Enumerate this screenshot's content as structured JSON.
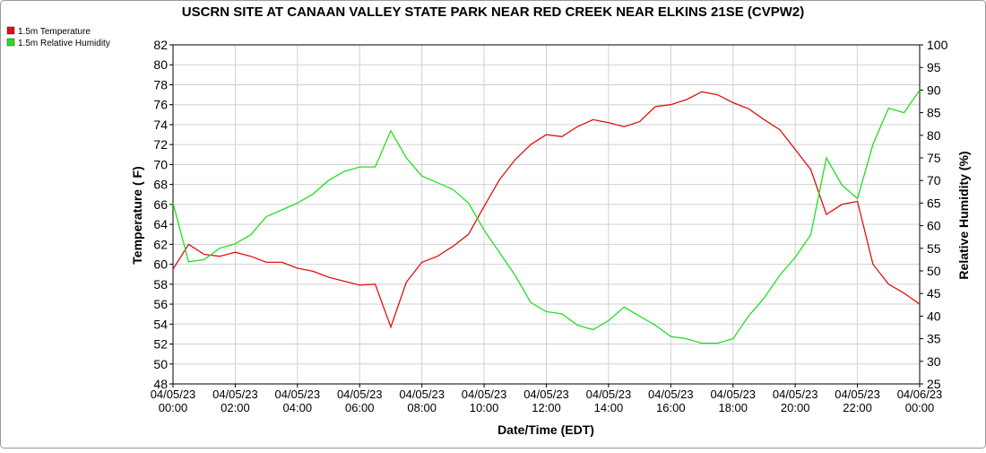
{
  "chart_data": {
    "type": "line",
    "title": "USCRN SITE AT CANAAN VALLEY STATE PARK NEAR RED CREEK NEAR ELKINS 21SE (CVPW2)",
    "xlabel": "Date/Time (EDT)",
    "ylabel": "Temperature ( F)",
    "y2label": "Relative Humidity (%)",
    "x": [
      0,
      0.5,
      1,
      1.5,
      2,
      2.5,
      3,
      3.5,
      4,
      4.5,
      5,
      5.5,
      6,
      6.5,
      7,
      7.5,
      8,
      8.5,
      9,
      9.5,
      10,
      10.5,
      11,
      11.5,
      12,
      12.5,
      13,
      13.5,
      14,
      14.5,
      15,
      15.5,
      16,
      16.5,
      17,
      17.5,
      18,
      18.5,
      19,
      19.5,
      20,
      20.5,
      21,
      21.5,
      22,
      22.5,
      23,
      23.5,
      24
    ],
    "series": [
      {
        "name": "1.5m Temperature",
        "color": "#e01010",
        "axis": "y",
        "values": [
          59.5,
          62.0,
          61.0,
          60.8,
          61.2,
          60.8,
          60.2,
          60.2,
          59.6,
          59.3,
          58.7,
          58.3,
          57.9,
          58.0,
          53.7,
          58.2,
          60.2,
          60.8,
          61.8,
          63.0,
          65.8,
          68.5,
          70.5,
          72.0,
          73.0,
          72.8,
          73.8,
          74.5,
          74.2,
          73.8,
          74.3,
          75.8,
          76.0,
          76.5,
          77.3,
          77.0,
          76.2,
          75.6,
          74.5,
          73.5,
          71.5,
          69.5,
          65.0,
          66.0,
          66.3,
          60.0,
          58.0,
          57.1,
          56.0
        ]
      },
      {
        "name": "1.5m Relative Humidity",
        "color": "#20e020",
        "axis": "y2",
        "values": [
          65,
          52,
          52.5,
          55,
          56,
          58,
          62,
          63.5,
          65,
          67,
          70,
          72,
          73,
          73,
          81,
          75,
          71,
          69.5,
          68,
          65,
          59,
          54,
          49,
          43,
          41,
          40.5,
          38,
          37,
          39,
          42,
          40,
          38,
          35.5,
          35,
          34,
          34,
          35,
          40,
          44,
          49,
          53,
          58,
          75,
          69,
          66,
          78,
          86,
          85,
          90
        ]
      }
    ],
    "xlim": [
      0,
      24
    ],
    "xticks": [
      {
        "value": 0,
        "label": "04/05/23 00:00"
      },
      {
        "value": 2,
        "label": "04/05/23 02:00"
      },
      {
        "value": 4,
        "label": "04/05/23 04:00"
      },
      {
        "value": 6,
        "label": "04/05/23 06:00"
      },
      {
        "value": 8,
        "label": "04/05/23 08:00"
      },
      {
        "value": 10,
        "label": "04/05/23 10:00"
      },
      {
        "value": 12,
        "label": "04/05/23 12:00"
      },
      {
        "value": 14,
        "label": "04/05/23 14:00"
      },
      {
        "value": 16,
        "label": "04/05/23 16:00"
      },
      {
        "value": 18,
        "label": "04/05/23 18:00"
      },
      {
        "value": 20,
        "label": "04/05/23 20:00"
      },
      {
        "value": 22,
        "label": "04/05/23 22:00"
      },
      {
        "value": 24,
        "label": "04/06/23 00:00"
      }
    ],
    "ylim": [
      48,
      82
    ],
    "yticks": [
      48,
      50,
      52,
      54,
      56,
      58,
      60,
      62,
      64,
      66,
      68,
      70,
      72,
      74,
      76,
      78,
      80,
      82
    ],
    "y2lim": [
      25,
      100
    ],
    "y2ticks": [
      25,
      30,
      35,
      40,
      45,
      50,
      55,
      60,
      65,
      70,
      75,
      80,
      85,
      90,
      95,
      100
    ],
    "grid": true
  }
}
